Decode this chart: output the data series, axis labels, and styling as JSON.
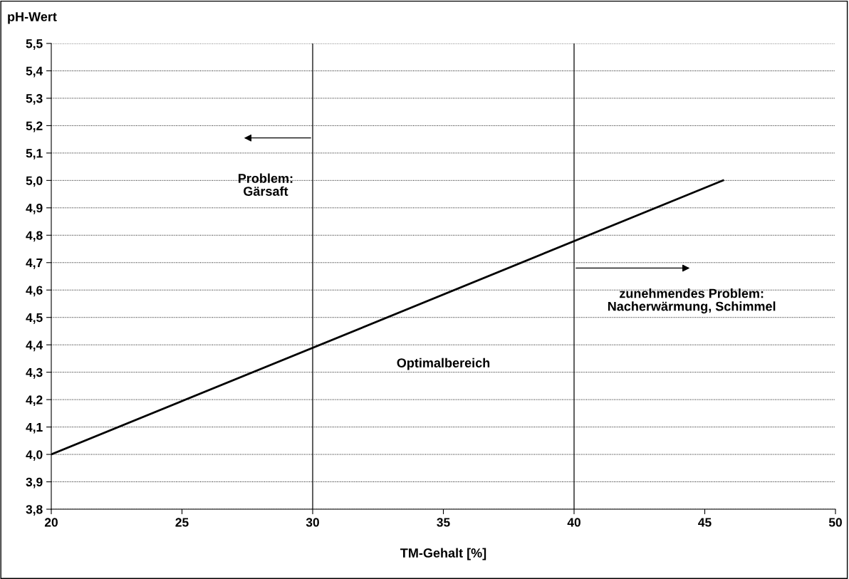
{
  "chart_data": {
    "type": "line",
    "xlabel": "TM-Gehalt [%]",
    "ylabel": "pH-Wert",
    "series": [
      {
        "color": "#000000",
        "x": [
          20,
          45.7
        ],
        "values": [
          4.0,
          5.0
        ]
      }
    ],
    "xlim": [
      20,
      50
    ],
    "xticks": [
      20,
      25,
      30,
      35,
      40,
      45,
      50
    ],
    "ylim": [
      3.8,
      5.5
    ],
    "yticks": [
      {
        "value": 3.8,
        "label": "3,8"
      },
      {
        "value": 3.9,
        "label": "3,9"
      },
      {
        "value": 4.0,
        "label": "4,0"
      },
      {
        "value": 4.1,
        "label": "4,1"
      },
      {
        "value": 4.2,
        "label": "4,2"
      },
      {
        "value": 4.3,
        "label": "4,3"
      },
      {
        "value": 4.4,
        "label": "4,4"
      },
      {
        "value": 4.5,
        "label": "4,5"
      },
      {
        "value": 4.6,
        "label": "4,6"
      },
      {
        "value": 4.7,
        "label": "4,7"
      },
      {
        "value": 4.8,
        "label": "4,8"
      },
      {
        "value": 4.9,
        "label": "4,9"
      },
      {
        "value": 5.0,
        "label": "5,0"
      },
      {
        "value": 5.1,
        "label": "5,1"
      },
      {
        "value": 5.2,
        "label": "5,2"
      },
      {
        "value": 5.3,
        "label": "5,3"
      },
      {
        "value": 5.4,
        "label": "5,4"
      },
      {
        "value": 5.5,
        "label": "5,5"
      }
    ],
    "ref_lines": [
      {
        "axis": "x",
        "value": 30,
        "color": "#000000"
      },
      {
        "axis": "x",
        "value": 40,
        "color": "#000000"
      }
    ],
    "annotations": [
      "Problem:\nGärsaft",
      "Optimalbereich",
      "zunehmendes Problem:\nNacherwärmung, Schimmel"
    ],
    "grid": "y",
    "legend": false
  }
}
